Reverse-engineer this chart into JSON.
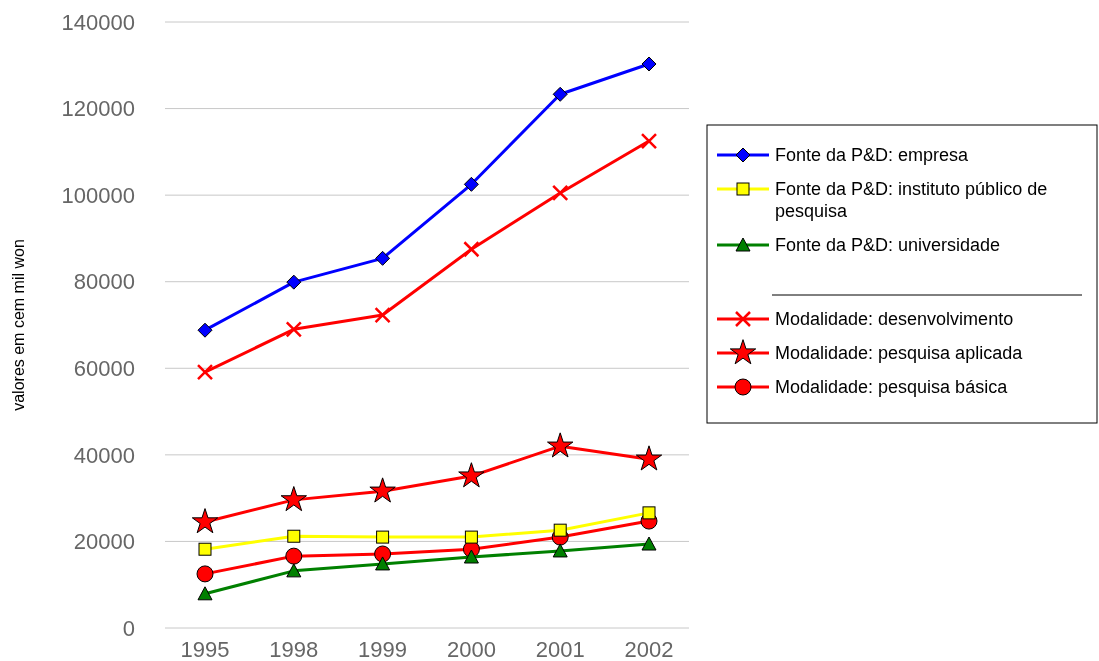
{
  "chart_data": {
    "type": "line",
    "ylabel": "valores em cem mil won",
    "categories": [
      "1995",
      "1998",
      "1999",
      "2000",
      "2001",
      "2002"
    ],
    "ylim": [
      0,
      140000
    ],
    "yticks": [
      0,
      20000,
      40000,
      60000,
      80000,
      100000,
      120000,
      140000
    ],
    "grid": "y",
    "legend": "right",
    "series": [
      {
        "name": "Fonte da P&D: empresa",
        "color": "#0000ff",
        "marker": "diamond",
        "values": [
          68800,
          79900,
          85400,
          102500,
          123300,
          130300
        ]
      },
      {
        "name": "Fonte da P&D: instituto público de pesquisa",
        "color": "#ffff00",
        "marker": "square",
        "values": [
          18200,
          21200,
          21000,
          21000,
          22600,
          26600
        ]
      },
      {
        "name": "Fonte da P&D: universidade",
        "color": "#008000",
        "marker": "triangle",
        "values": [
          7900,
          13200,
          14800,
          16400,
          17800,
          19400
        ]
      },
      {
        "name": "Modalidade: desenvolvimento",
        "color": "#ff0000",
        "marker": "cross",
        "values": [
          59100,
          69000,
          72300,
          87500,
          100500,
          112500
        ]
      },
      {
        "name": "Modalidade: pesquisa aplicada",
        "color": "#ff0000",
        "marker": "star",
        "values": [
          24500,
          29600,
          31600,
          35100,
          42000,
          39000
        ]
      },
      {
        "name": "Modalidade: pesquisa básica",
        "color": "#ff0000",
        "marker": "circle",
        "values": [
          12500,
          16600,
          17100,
          18200,
          21000,
          24700
        ]
      }
    ]
  }
}
